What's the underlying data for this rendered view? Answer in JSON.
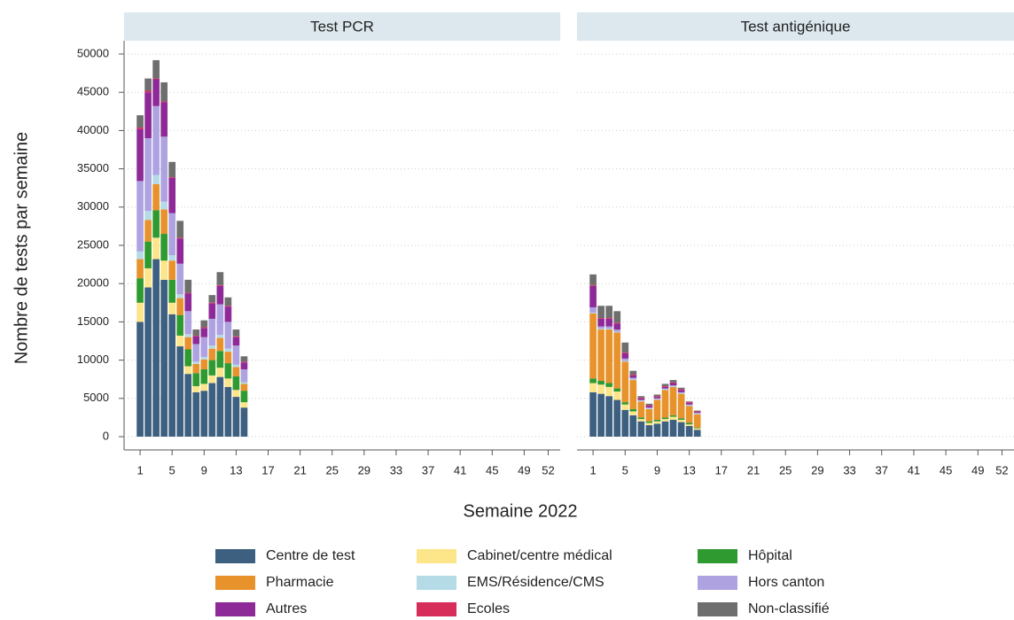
{
  "chart_data": {
    "type": "bar",
    "stacked": true,
    "ylabel": "Nombre de tests par semaine",
    "xlabel": "Semaine 2022",
    "x": [
      1,
      2,
      3,
      4,
      5,
      6,
      7,
      8,
      9,
      10,
      11,
      12,
      13,
      14
    ],
    "xlim": [
      -1,
      53.5
    ],
    "xticks": [
      1,
      5,
      9,
      13,
      17,
      21,
      25,
      29,
      33,
      37,
      41,
      45,
      49,
      52
    ],
    "ylim": [
      0,
      50000
    ],
    "yticks": [
      0,
      5000,
      10000,
      15000,
      20000,
      25000,
      30000,
      35000,
      40000,
      45000,
      50000
    ],
    "grid": true,
    "legend": "bottom",
    "series": [
      {
        "name": "Centre de test",
        "color": "#3d5f80"
      },
      {
        "name": "Cabinet/centre médical",
        "color": "#fde58a"
      },
      {
        "name": "Hôpital",
        "color": "#2f9a2f"
      },
      {
        "name": "Pharmacie",
        "color": "#e8922b"
      },
      {
        "name": "EMS/Résidence/CMS",
        "color": "#b4dbe6"
      },
      {
        "name": "Hors canton",
        "color": "#aea3e0"
      },
      {
        "name": "Autres",
        "color": "#8e2a98"
      },
      {
        "name": "Ecoles",
        "color": "#d62d5a"
      },
      {
        "name": "Non-classifié",
        "color": "#6e6e6e"
      }
    ],
    "panels": [
      {
        "title": "Test PCR",
        "values": [
          [
            15000,
            19500,
            23200,
            20500,
            16000,
            11800,
            8200,
            5800,
            6000,
            7000,
            7800,
            6500,
            5200,
            3800
          ],
          [
            2500,
            2500,
            2800,
            2500,
            1500,
            1400,
            1000,
            800,
            900,
            1000,
            1200,
            1100,
            900,
            700
          ],
          [
            3200,
            3500,
            3600,
            3500,
            3000,
            2700,
            2200,
            1700,
            1900,
            2000,
            2200,
            2000,
            1800,
            1500
          ],
          [
            2500,
            2800,
            3400,
            3200,
            2500,
            2200,
            1600,
            1200,
            1300,
            1500,
            1700,
            1500,
            1200,
            900
          ],
          [
            1000,
            1200,
            1200,
            1000,
            700,
            500,
            400,
            300,
            300,
            400,
            400,
            400,
            300,
            200
          ],
          [
            9200,
            9500,
            9000,
            8500,
            5500,
            4000,
            3000,
            2300,
            2600,
            3500,
            4000,
            3500,
            2500,
            1700
          ],
          [
            6800,
            6000,
            3500,
            4500,
            4600,
            3300,
            2300,
            1000,
            1200,
            2000,
            2400,
            2000,
            1100,
            900
          ],
          [
            200,
            200,
            100,
            100,
            100,
            100,
            100,
            100,
            100,
            100,
            100,
            100,
            100,
            100
          ],
          [
            1600,
            1600,
            2400,
            2500,
            2000,
            2200,
            1700,
            800,
            900,
            1000,
            1700,
            1100,
            900,
            700
          ]
        ]
      },
      {
        "title": "Test antigénique",
        "values": [
          [
            5800,
            5600,
            5300,
            4800,
            3500,
            2800,
            2000,
            1500,
            1700,
            2000,
            2200,
            1900,
            1400,
            900
          ],
          [
            1200,
            1200,
            1200,
            1100,
            700,
            500,
            300,
            300,
            300,
            300,
            400,
            300,
            200,
            200
          ],
          [
            600,
            500,
            500,
            400,
            300,
            300,
            200,
            200,
            200,
            200,
            200,
            200,
            200,
            100
          ],
          [
            8500,
            6700,
            7000,
            7300,
            5300,
            3800,
            2100,
            1600,
            2600,
            3600,
            3700,
            3200,
            2200,
            1700
          ],
          [
            100,
            100,
            100,
            100,
            100,
            100,
            100,
            100,
            100,
            100,
            100,
            100,
            100,
            100
          ],
          [
            700,
            300,
            300,
            300,
            300,
            200,
            100,
            100,
            100,
            100,
            100,
            100,
            100,
            100
          ],
          [
            2800,
            1000,
            1000,
            800,
            700,
            300,
            200,
            200,
            200,
            200,
            300,
            300,
            200,
            100
          ],
          [
            100,
            100,
            100,
            100,
            100,
            100,
            100,
            100,
            100,
            100,
            100,
            100,
            100,
            100
          ],
          [
            1400,
            1600,
            1600,
            1500,
            1300,
            500,
            200,
            200,
            200,
            300,
            300,
            200,
            100,
            100
          ]
        ]
      }
    ]
  }
}
